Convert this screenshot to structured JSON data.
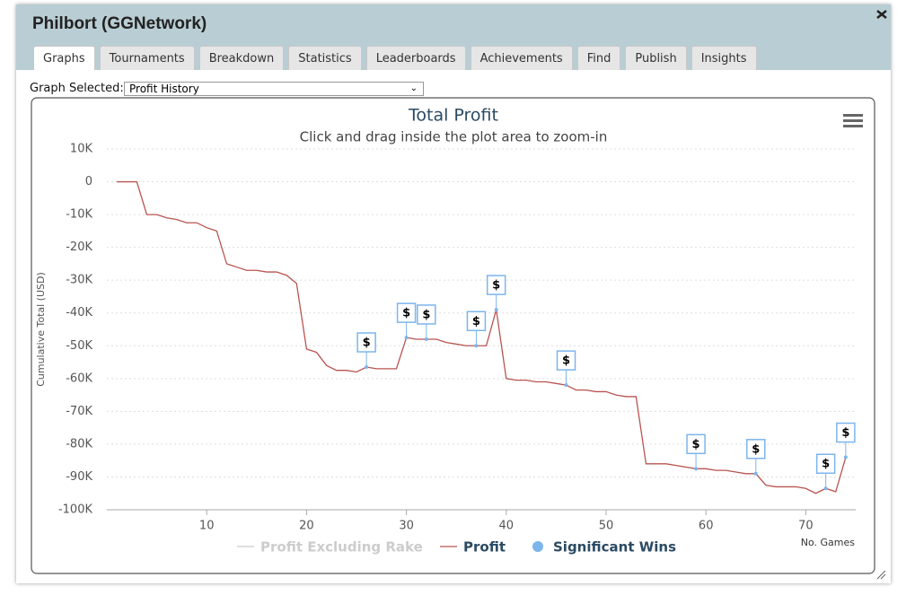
{
  "window": {
    "title": "Philbort (GGNetwork)",
    "tabs": [
      "Graphs",
      "Tournaments",
      "Breakdown",
      "Statistics",
      "Leaderboards",
      "Achievements",
      "Find",
      "Publish",
      "Insights"
    ],
    "graph_selected_label": "Graph Selected:",
    "graph_selected_value": "Profit History"
  },
  "chart_data": {
    "type": "line",
    "title": "Total Profit",
    "subtitle": "Click and drag inside the plot area to zoom-in",
    "y_label": "Cumulative Total (USD)",
    "x_label": "No. Games",
    "grid": true,
    "marker_label": "$",
    "x": [
      1,
      2,
      3,
      4,
      5,
      6,
      7,
      8,
      9,
      10,
      11,
      12,
      13,
      14,
      15,
      16,
      17,
      18,
      19,
      20,
      21,
      22,
      23,
      24,
      25,
      26,
      27,
      28,
      29,
      30,
      31,
      32,
      33,
      34,
      35,
      36,
      37,
      38,
      39,
      40,
      41,
      42,
      43,
      44,
      45,
      46,
      47,
      48,
      49,
      50,
      51,
      52,
      53,
      54,
      55,
      56,
      57,
      58,
      59,
      60,
      61,
      62,
      63,
      64,
      65,
      66,
      67,
      68,
      69,
      70,
      71,
      72,
      73,
      74
    ],
    "xlim": [
      0,
      75
    ],
    "xticks": [
      10,
      20,
      30,
      40,
      50,
      60,
      70
    ],
    "ylim": [
      -100000,
      10000
    ],
    "yticks": [
      {
        "value": 10000,
        "label": "10K"
      },
      0,
      {
        "value": -10000,
        "label": "-10K"
      },
      {
        "value": -20000,
        "label": "-20K"
      },
      {
        "value": -30000,
        "label": "-30K"
      },
      {
        "value": -40000,
        "label": "-40K"
      },
      {
        "value": -50000,
        "label": "-50K"
      },
      {
        "value": -60000,
        "label": "-60K"
      },
      {
        "value": -70000,
        "label": "-70K"
      },
      {
        "value": -80000,
        "label": "-80K"
      },
      {
        "value": -90000,
        "label": "-90K"
      },
      {
        "value": -100000,
        "label": "-100K"
      }
    ],
    "series": [
      {
        "name": "Profit Excluding Rake",
        "color": "#cccccc",
        "visible": false
      },
      {
        "name": "Profit",
        "color": "#b85450",
        "values": [
          0,
          0,
          0,
          -10000,
          -10000,
          -11000,
          -11500,
          -12500,
          -12500,
          -14000,
          -15000,
          -25000,
          -26000,
          -27000,
          -27000,
          -27500,
          -27500,
          -28500,
          -31000,
          -51000,
          -52000,
          -56000,
          -57500,
          -57500,
          -58000,
          -56500,
          -57000,
          -57000,
          -57000,
          -47500,
          -48000,
          -48000,
          -48000,
          -49000,
          -49500,
          -50000,
          -50000,
          -50000,
          -39000,
          -60000,
          -60500,
          -60500,
          -61000,
          -61000,
          -61500,
          -62000,
          -63500,
          -63500,
          -64000,
          -64000,
          -65000,
          -65500,
          -65500,
          -86000,
          -86000,
          -86000,
          -86500,
          -87000,
          -87500,
          -87500,
          -88000,
          -88000,
          -88500,
          -89000,
          -89000,
          -92500,
          -93000,
          -93000,
          -93000,
          -93500,
          -95000,
          -93500,
          -94500,
          -84000
        ]
      },
      {
        "name": "Significant Wins",
        "color": "#7cb5ec",
        "x": [
          26,
          30,
          32,
          37,
          39,
          46,
          59,
          65,
          72,
          74
        ],
        "values": [
          -56500,
          -47500,
          -48000,
          -50000,
          -39000,
          -62000,
          -87500,
          -89000,
          -93500,
          -84000
        ]
      }
    ]
  }
}
